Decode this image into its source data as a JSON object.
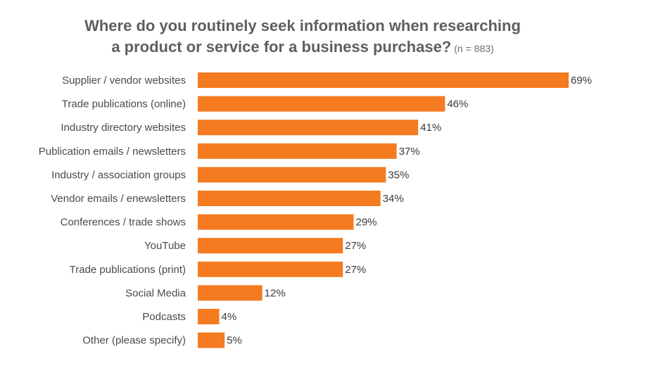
{
  "chart_data": {
    "type": "bar",
    "orientation": "horizontal",
    "title": "Where do you routinely seek information when researching",
    "title_line2": "a product or service for a business purchase?",
    "note": "(n = 883)",
    "categories": [
      "Supplier / vendor websites",
      "Trade publications (online)",
      "Industry directory websites",
      "Publication emails / newsletters",
      "Industry / association groups",
      "Vendor emails / enewsletters",
      "Conferences / trade shows",
      "YouTube",
      "Trade publications (print)",
      "Social Media",
      "Podcasts",
      "Other (please specify)"
    ],
    "values": [
      69,
      46,
      41,
      37,
      35,
      34,
      29,
      27,
      27,
      12,
      4,
      5
    ],
    "value_labels": [
      "69%",
      "46%",
      "41%",
      "37%",
      "35%",
      "34%",
      "29%",
      "27%",
      "27%",
      "12%",
      "4%",
      "5%"
    ],
    "unit": "%",
    "xlim": [
      0,
      69
    ],
    "grid": false,
    "legend": "none",
    "bar_color": "#f47b20"
  }
}
